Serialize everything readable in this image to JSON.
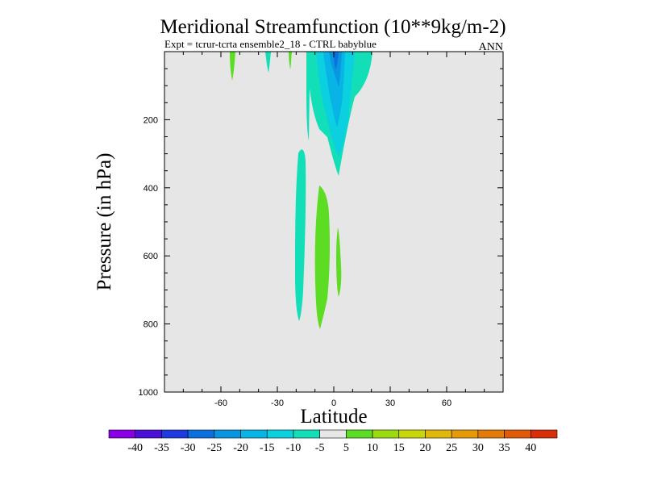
{
  "chart_data": {
    "type": "heatmap",
    "title": "Meridional Streamfunction (10**9kg/m-2)",
    "subtitle": "Expt = tcrur-tcrta  ensemble2_18 - CTRL babyblue",
    "season": "ANN",
    "xlabel": "Latitude",
    "ylabel": "Pressure (in hPa)",
    "xlim": [
      -90,
      90
    ],
    "ylim": [
      1000,
      0
    ],
    "y_inverted": true,
    "x_ticks": [
      -60,
      -30,
      0,
      30,
      60
    ],
    "x_tick_labels": [
      "-60",
      "-30",
      "0",
      "30",
      "60"
    ],
    "y_ticks": [
      200,
      400,
      600,
      800,
      1000
    ],
    "y_tick_labels": [
      "200",
      "400",
      "600",
      "800",
      "1000"
    ],
    "background_color": "#e6e6e6",
    "levels": [
      -40,
      -35,
      -30,
      -25,
      -20,
      -15,
      -10,
      -5,
      5,
      10,
      15,
      20,
      25,
      30,
      35,
      40
    ],
    "level_labels": [
      "-40",
      "-35",
      "-30",
      "-25",
      "-20",
      "-15",
      "-10",
      "-5",
      "5",
      "10",
      "15",
      "20",
      "25",
      "30",
      "35",
      "40"
    ],
    "colorbar_colors": [
      "#8a00e6",
      "#4b0fd6",
      "#1e3ae0",
      "#0a6fdf",
      "#0896e0",
      "#08b4e6",
      "#0ad0df",
      "#12dfb8",
      "#e6e6e6",
      "#5cdc22",
      "#9adb10",
      "#c8d60a",
      "#e0b80a",
      "#e69a08",
      "#e47a08",
      "#e05a08",
      "#d92e08"
    ],
    "regions": [
      {
        "level": "-5 to -10",
        "color": "#12dfb8",
        "lat_range": [
          -9,
          20
        ],
        "p_range": [
          0,
          370
        ],
        "note": "upper tropospheric negative cell"
      },
      {
        "level": "-10 to -15",
        "color": "#0ad0df",
        "lat_range": [
          -5,
          14
        ],
        "p_range": [
          0,
          300
        ]
      },
      {
        "level": "-15 to -20",
        "color": "#08b4e6",
        "lat_range": [
          -2,
          9
        ],
        "p_range": [
          0,
          200
        ]
      },
      {
        "level": "-20 to -25",
        "color": "#0896e0",
        "lat_range": [
          0,
          7
        ],
        "p_range": [
          0,
          110
        ]
      },
      {
        "level": "-25 to -30",
        "color": "#0a6fdf",
        "lat_range": [
          2,
          5
        ],
        "p_range": [
          0,
          50
        ]
      },
      {
        "level": "-5 to -10",
        "color": "#12dfb8",
        "lat_range": [
          -19,
          -15
        ],
        "p_range": [
          280,
          790
        ],
        "note": "lower tropospheric negative band"
      },
      {
        "level": "5 to 10",
        "color": "#5cdc22",
        "lat_range": [
          -10,
          -2
        ],
        "p_range": [
          390,
          820
        ],
        "note": "lower tropospheric positive cell"
      },
      {
        "level": "5 to 10",
        "color": "#5cdc22",
        "lat_range": [
          1,
          4
        ],
        "p_range": [
          510,
          730
        ]
      },
      {
        "level": "5 to 10",
        "color": "#5cdc22",
        "lat_range": [
          -54,
          -52
        ],
        "p_range": [
          0,
          90
        ]
      },
      {
        "level": "-5 to -10",
        "color": "#12dfb8",
        "lat_range": [
          -33,
          -31
        ],
        "p_range": [
          0,
          60
        ]
      },
      {
        "level": "5 to 10",
        "color": "#5cdc22",
        "lat_range": [
          -22,
          -21
        ],
        "p_range": [
          0,
          60
        ]
      }
    ]
  }
}
